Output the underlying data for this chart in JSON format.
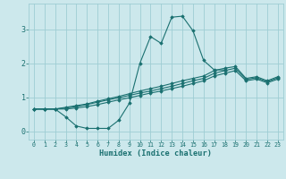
{
  "xlabel": "Humidex (Indice chaleur)",
  "x_values": [
    0,
    1,
    2,
    3,
    4,
    5,
    6,
    7,
    8,
    9,
    10,
    11,
    12,
    13,
    14,
    15,
    16,
    17,
    18,
    19,
    20,
    21,
    22,
    23
  ],
  "line_peak": [
    0.65,
    0.65,
    0.65,
    0.42,
    0.15,
    0.08,
    0.08,
    0.08,
    0.32,
    0.82,
    2.0,
    2.78,
    2.58,
    3.35,
    3.38,
    2.95,
    2.08,
    1.8,
    1.8,
    null,
    null,
    null,
    null,
    null
  ],
  "line_upper": [
    0.65,
    0.65,
    0.65,
    0.7,
    0.75,
    0.8,
    0.88,
    0.95,
    1.02,
    1.1,
    1.18,
    1.25,
    1.32,
    1.4,
    1.48,
    1.55,
    1.62,
    1.78,
    1.85,
    1.9,
    1.55,
    1.6,
    1.48,
    1.6
  ],
  "line_mid": [
    0.65,
    0.65,
    0.65,
    0.68,
    0.72,
    0.78,
    0.85,
    0.92,
    0.98,
    1.05,
    1.12,
    1.18,
    1.25,
    1.32,
    1.4,
    1.48,
    1.55,
    1.7,
    1.78,
    1.85,
    1.52,
    1.57,
    1.45,
    1.57
  ],
  "line_lower": [
    0.65,
    0.65,
    0.65,
    0.65,
    0.68,
    0.72,
    0.78,
    0.85,
    0.92,
    0.98,
    1.05,
    1.12,
    1.18,
    1.25,
    1.32,
    1.4,
    1.48,
    1.62,
    1.7,
    1.78,
    1.48,
    1.53,
    1.42,
    1.53
  ],
  "bg_color": "#cce8ec",
  "grid_color": "#9ecdd4",
  "line_color": "#1a7070",
  "ylim": [
    -0.25,
    3.75
  ],
  "yticks": [
    0,
    1,
    2,
    3
  ],
  "xlim": [
    -0.5,
    23.5
  ]
}
